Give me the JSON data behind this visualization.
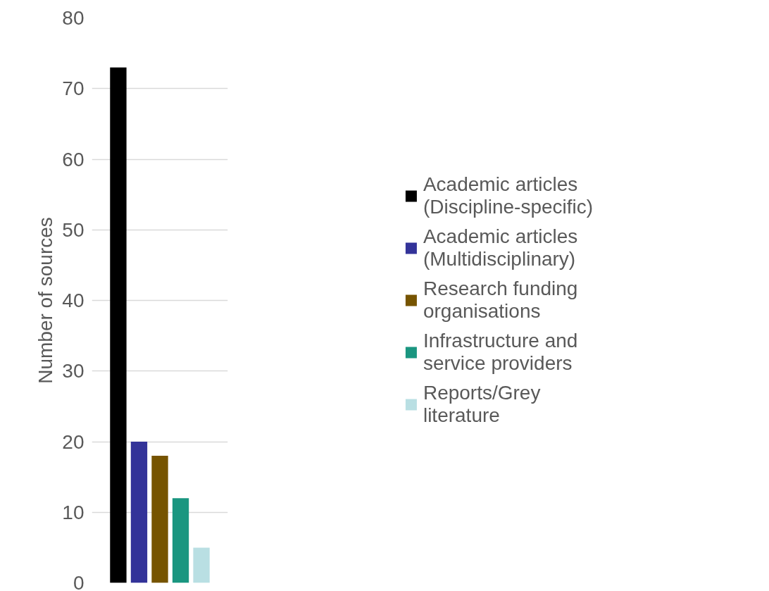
{
  "chart_data": {
    "type": "bar",
    "ylabel": "Number of sources",
    "categories": [
      null
    ],
    "series": [
      {
        "name": "Academic articles (Discipline-specific)",
        "color": "#000000",
        "values": [
          73
        ]
      },
      {
        "name": "Academic articles (Multidisciplinary)",
        "color": "#333399",
        "values": [
          20
        ]
      },
      {
        "name": "Research funding organisations",
        "color": "#765400",
        "values": [
          18
        ]
      },
      {
        "name": "Infrastructure and service providers",
        "color": "#1a9680",
        "values": [
          12
        ]
      },
      {
        "name": "Reports/Grey literature",
        "color": "#b9dfe3",
        "values": [
          5
        ]
      }
    ],
    "ylim": [
      0,
      80
    ],
    "yticks": [
      0,
      10,
      20,
      30,
      40,
      50,
      60,
      70,
      80
    ],
    "grid": "y",
    "legend": "right"
  }
}
